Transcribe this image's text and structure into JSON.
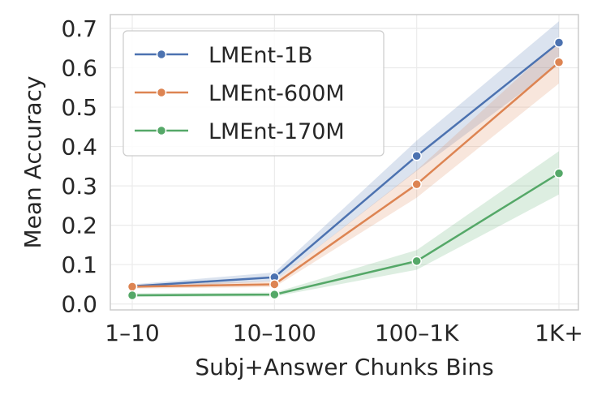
{
  "chart_data": {
    "type": "line",
    "categories": [
      "1–10",
      "10–100",
      "100–1K",
      "1K+"
    ],
    "xlabel": "Subj+Answer Chunks Bins",
    "ylabel": "Mean Accuracy",
    "ylim": [
      -0.015,
      0.735
    ],
    "yticks": [
      "0.0",
      "0.1",
      "0.2",
      "0.3",
      "0.4",
      "0.5",
      "0.6",
      "0.7"
    ],
    "grid": true,
    "legend_position": "top-left",
    "series": [
      {
        "name": "LMEnt-1B",
        "color": "#4c72b0",
        "values": [
          0.045,
          0.068,
          0.376,
          0.664
        ],
        "lower": [
          0.04,
          0.058,
          0.338,
          0.608
        ],
        "upper": [
          0.05,
          0.08,
          0.415,
          0.718
        ]
      },
      {
        "name": "LMEnt-600M",
        "color": "#dd8452",
        "values": [
          0.044,
          0.05,
          0.304,
          0.614
        ],
        "lower": [
          0.039,
          0.043,
          0.27,
          0.56
        ],
        "upper": [
          0.049,
          0.058,
          0.34,
          0.668
        ]
      },
      {
        "name": "LMEnt-170M",
        "color": "#55a868",
        "values": [
          0.022,
          0.024,
          0.109,
          0.332
        ],
        "lower": [
          0.018,
          0.019,
          0.087,
          0.278
        ],
        "upper": [
          0.027,
          0.029,
          0.137,
          0.388
        ]
      }
    ]
  }
}
